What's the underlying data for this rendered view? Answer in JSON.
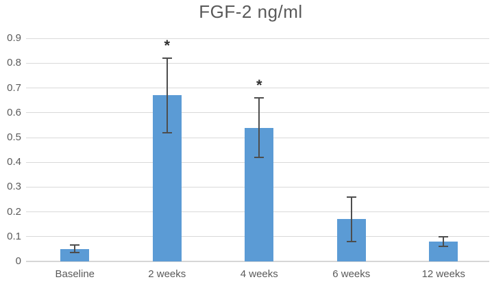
{
  "chart_data": {
    "type": "bar",
    "title": "FGF-2 ng/ml",
    "categories": [
      "Baseline",
      "2 weeks",
      "4 weeks",
      "6 weeks",
      "12 weeks"
    ],
    "values": [
      0.05,
      0.67,
      0.54,
      0.17,
      0.08
    ],
    "error_low": [
      0.035,
      0.52,
      0.42,
      0.08,
      0.06
    ],
    "error_high": [
      0.065,
      0.82,
      0.66,
      0.26,
      0.1
    ],
    "significance": [
      "",
      "*",
      "*",
      "",
      ""
    ],
    "xlabel": "",
    "ylabel": "",
    "ylim": [
      0,
      0.9
    ],
    "ytick_step": 0.1,
    "ytick_labels": [
      "0",
      "0.1",
      "0.2",
      "0.3",
      "0.4",
      "0.5",
      "0.6",
      "0.7",
      "0.8",
      "0.9"
    ],
    "grid": true,
    "legend": false,
    "colors": {
      "bar_fill": "#5b9bd5",
      "error_bar": "#4d4d4d",
      "gridline": "#d9d9d9",
      "axis_line": "#d6d6d6",
      "text": "#595959",
      "significance": "#303030",
      "background": "#ffffff"
    }
  }
}
